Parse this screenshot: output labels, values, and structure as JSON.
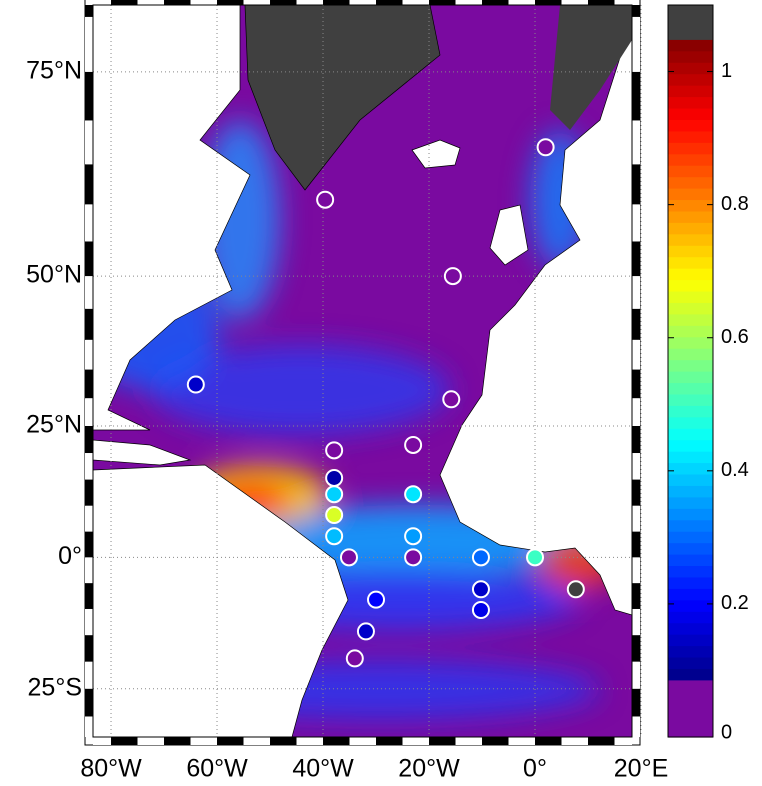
{
  "chart_data": {
    "type": "map",
    "projection": "miller",
    "xlim": [
      -83.4,
      18.3
    ],
    "ylim": [
      -33.6,
      81
    ],
    "xticks": [
      {
        "value": -80,
        "label": "80°W"
      },
      {
        "value": -60,
        "label": "60°W"
      },
      {
        "value": -40,
        "label": "40°W"
      },
      {
        "value": -20,
        "label": "20°W"
      },
      {
        "value": 0,
        "label": "0°"
      },
      {
        "value": 20,
        "label": "20°E"
      }
    ],
    "yticks": [
      {
        "value": -25,
        "label": "25°S"
      },
      {
        "value": 0,
        "label": "0°"
      },
      {
        "value": 25,
        "label": "25°N"
      },
      {
        "value": 50,
        "label": "50°N"
      },
      {
        "value": 75,
        "label": "75°N"
      }
    ],
    "grid": true,
    "colormap": "jet",
    "clim": [
      0.08,
      1.05
    ],
    "under_color": "#7a0aa0",
    "over_color": "#404040",
    "colorbar": {
      "lim": [
        0,
        1.1
      ],
      "ticks": [
        0,
        0.2,
        0.4,
        0.6,
        0.8,
        1
      ]
    },
    "markers": {
      "lon": [
        2,
        -39.6,
        -15.5,
        -64,
        -15.8,
        -37.9,
        -23,
        -37.9,
        -37.9,
        -23,
        -37.9,
        -37.9,
        -23,
        -35.1,
        -23,
        -10.2,
        0,
        7.7,
        -10.2,
        -10.2,
        -30,
        -31.9,
        -34
      ],
      "lat": [
        67,
        60.6,
        50,
        32.4,
        29.8,
        20.5,
        21.5,
        15.3,
        12.2,
        12.2,
        8.2,
        4.1,
        4.1,
        0,
        0,
        0,
        0,
        -6.2,
        -6.2,
        -10.2,
        -8.2,
        -14.3,
        -19.4
      ],
      "values": [
        0.05,
        0.05,
        0.05,
        0.15,
        0.05,
        0.05,
        0.05,
        0.12,
        0.4,
        0.42,
        0.65,
        0.38,
        0.35,
        0.05,
        0.05,
        0.3,
        0.5,
        1.1,
        0.15,
        0.18,
        0.2,
        0.15,
        0.05
      ]
    }
  }
}
